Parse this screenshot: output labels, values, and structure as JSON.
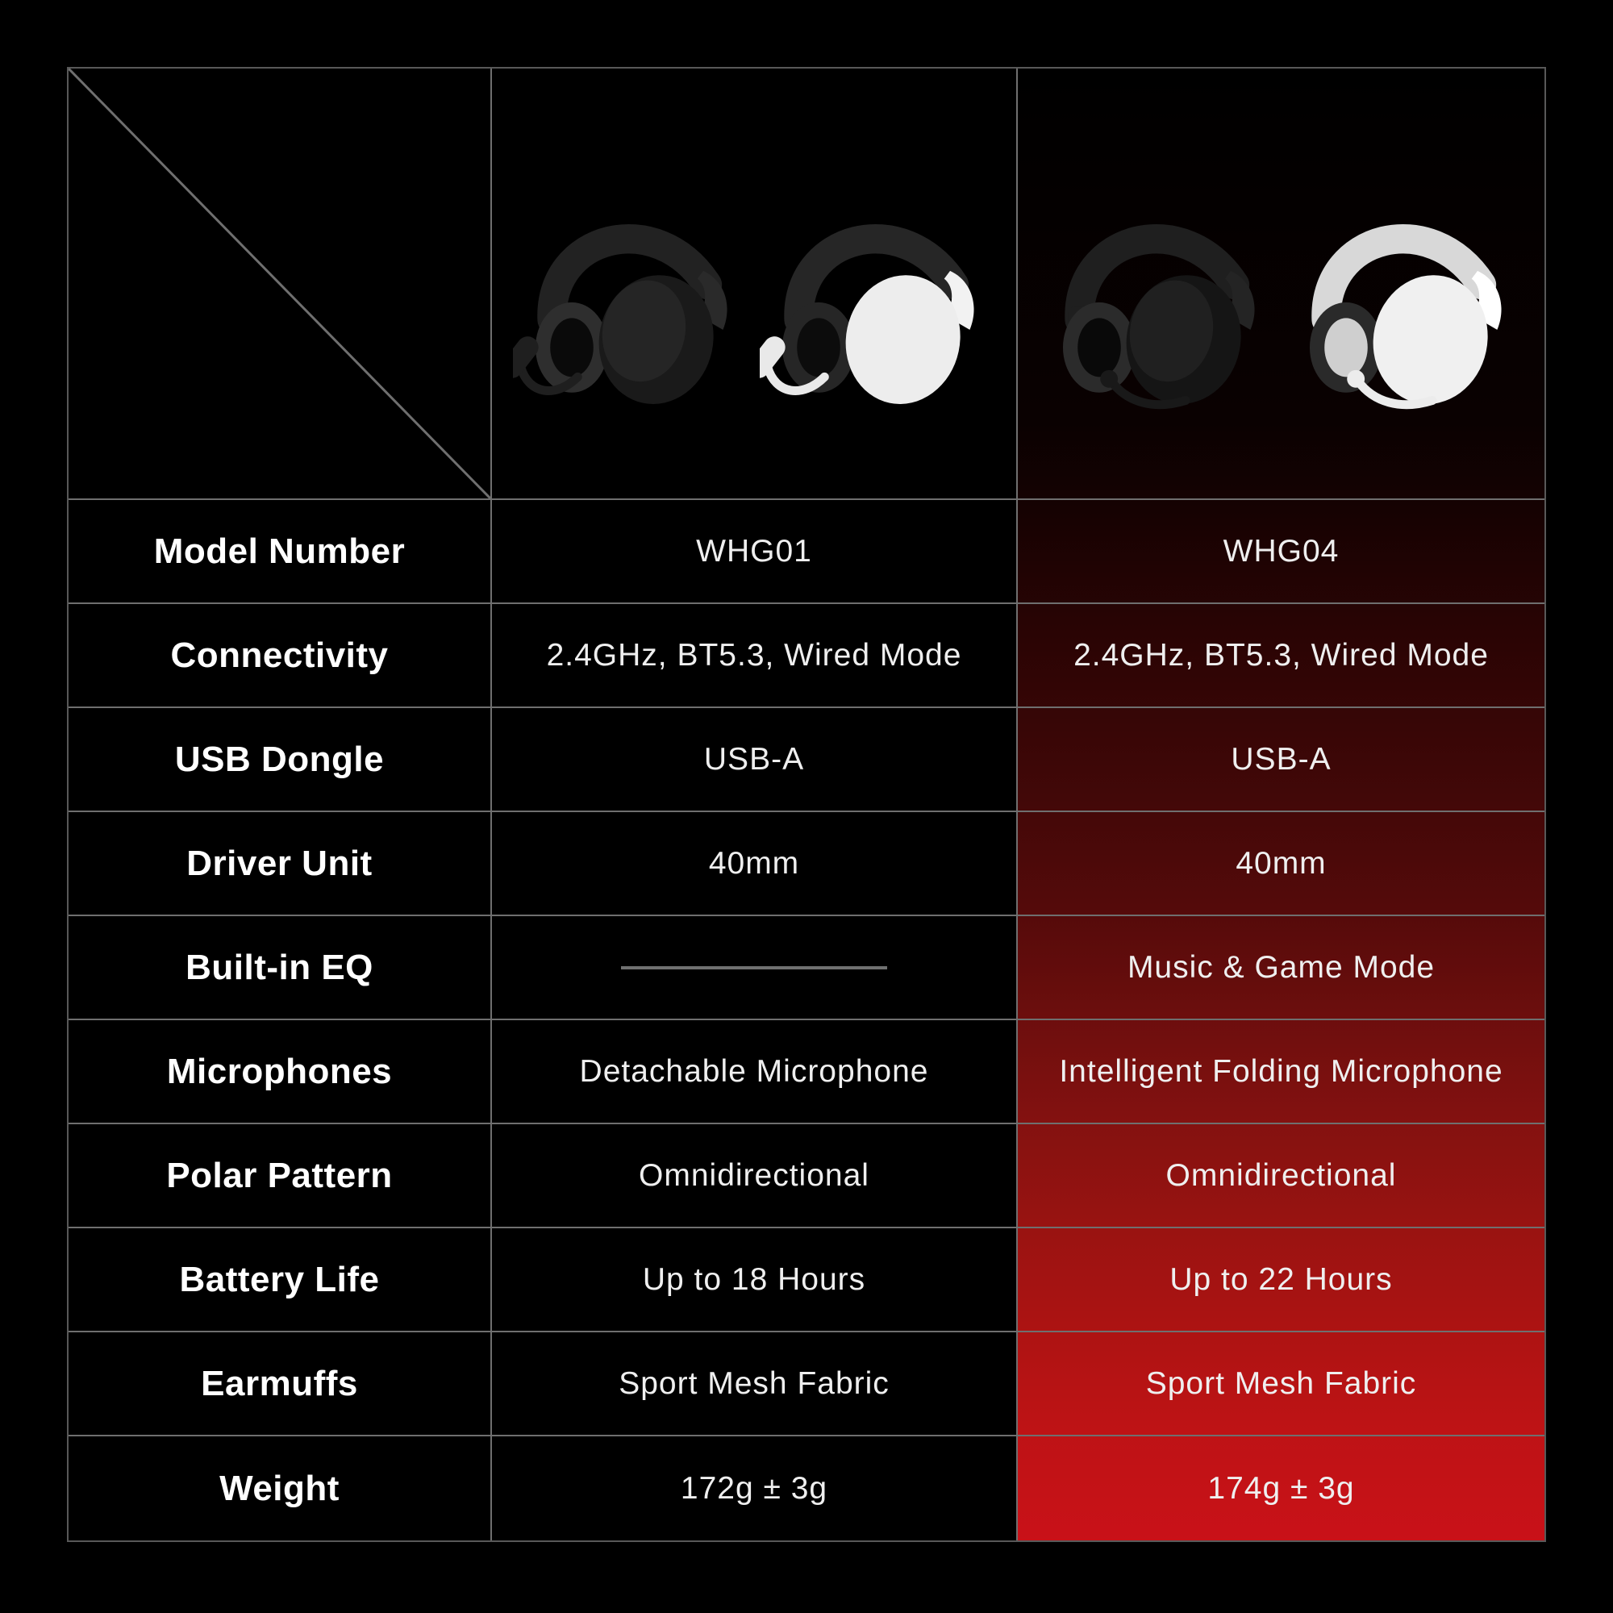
{
  "page": {
    "background": "#000000"
  },
  "table": {
    "border_color": "#6f6f6f",
    "outer_border_color": "#585858",
    "cell_background": "#000000",
    "label_text_color": "#ffffff",
    "value_text_color": "#efefef",
    "empty_value_dash_color": "#6f7070",
    "highlight_column": "WHG04",
    "red_gradient_stops": [
      [
        "#000000",
        "0%"
      ],
      [
        "#0a0101",
        "24%"
      ],
      [
        "#160202",
        "30%"
      ],
      [
        "#200303",
        "34%"
      ],
      [
        "#320505",
        "42%"
      ],
      [
        "#430808",
        "50%"
      ],
      [
        "#540a0a",
        "57%"
      ],
      [
        "#6b0e0d",
        "64%"
      ],
      [
        "#821110",
        "71%"
      ],
      [
        "#971311",
        "78%"
      ],
      [
        "#ab1312",
        "85%"
      ],
      [
        "#bd1315",
        "92%"
      ],
      [
        "#c91118",
        "100%"
      ]
    ]
  },
  "products": [
    {
      "model": "WHG01",
      "image_alt": "whg01-black-and-white-wireless-headsets",
      "variants": [
        {
          "name": "black",
          "band": "#222222",
          "cup": "#1a1a1a",
          "pad": "#2e2e2e",
          "inner": "#0a0a0a",
          "yoke": "#2a2a2a",
          "mic": "#1f1f1f",
          "accent": "#e0331f",
          "mic_style": "boom"
        },
        {
          "name": "white",
          "band": "#262626",
          "cup": "#ededed",
          "pad": "#262626",
          "inner": "#0c0c0c",
          "yoke": "#f2f2f2",
          "mic": "#e9e9e9",
          "accent": null,
          "mic_style": "boom"
        }
      ]
    },
    {
      "model": "WHG04",
      "image_alt": "whg04-black-and-white-wireless-headsets",
      "variants": [
        {
          "name": "black",
          "band": "#1f1f1f",
          "cup": "#151515",
          "pad": "#2b2b2b",
          "inner": "#090909",
          "yoke": "#242424",
          "mic": "#191919",
          "accent": null,
          "mic_style": "fold"
        },
        {
          "name": "white",
          "band": "#d8d8d8",
          "cup": "#f0f0f0",
          "pad": "#2a2a2a",
          "inner": "#cfcfcf",
          "yoke": "#ffffff",
          "mic": "#ececec",
          "accent": null,
          "mic_style": "fold"
        }
      ]
    }
  ],
  "rows": [
    {
      "label": "Model Number",
      "whg01": "WHG01",
      "whg04": "WHG04"
    },
    {
      "label": "Connectivity",
      "whg01": "2.4GHz, BT5.3, Wired Mode",
      "whg04": "2.4GHz, BT5.3, Wired Mode"
    },
    {
      "label": "USB Dongle",
      "whg01": "USB-A",
      "whg04": "USB-A"
    },
    {
      "label": "Driver Unit",
      "whg01": "40mm",
      "whg04": "40mm"
    },
    {
      "label": "Built-in EQ",
      "whg01": null,
      "whg04": "Music & Game Mode"
    },
    {
      "label": "Microphones",
      "whg01": "Detachable Microphone",
      "whg04": "Intelligent Folding Microphone"
    },
    {
      "label": "Polar Pattern",
      "whg01": "Omnidirectional",
      "whg04": "Omnidirectional"
    },
    {
      "label": "Battery Life",
      "whg01": "Up to 18 Hours",
      "whg04": "Up to 22 Hours"
    },
    {
      "label": "Earmuffs",
      "whg01": "Sport Mesh Fabric",
      "whg04": "Sport Mesh Fabric"
    },
    {
      "label": "Weight",
      "whg01": "172g ± 3g",
      "whg04": "174g ± 3g"
    }
  ]
}
